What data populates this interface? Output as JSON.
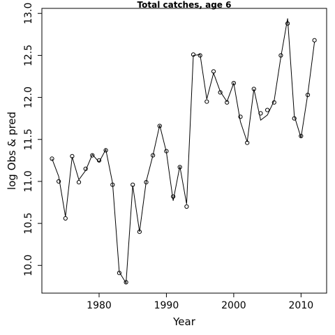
{
  "chart_data": {
    "type": "scatter",
    "title": "Total catches, age 6",
    "xlabel": "Year",
    "ylabel": "log Obs & pred",
    "xlim": [
      1971.5,
      2013.8
    ],
    "ylim": [
      9.67,
      13.06
    ],
    "xticks": [
      1980,
      1990,
      2000,
      2010
    ],
    "yticks": [
      10.0,
      10.5,
      11.0,
      11.5,
      12.0,
      12.5,
      13.0
    ],
    "grid": false,
    "legend": "none",
    "series": [
      {
        "kind": "observed",
        "style": "open-circles",
        "x": [
          1973,
          1974,
          1975,
          1976,
          1977,
          1978,
          1979,
          1980,
          1981,
          1982,
          1983,
          1984,
          1985,
          1986,
          1987,
          1988,
          1989,
          1990,
          1991,
          1992,
          1993,
          1994,
          1995,
          1996,
          1997,
          1998,
          1999,
          2000,
          2001,
          2002,
          2003,
          2004,
          2005,
          2006,
          2007,
          2008,
          2009,
          2010,
          2011,
          2012
        ],
        "y": [
          11.27,
          11.0,
          10.56,
          11.3,
          10.99,
          11.15,
          11.31,
          11.25,
          11.37,
          10.96,
          9.91,
          9.8,
          10.96,
          10.4,
          10.99,
          11.31,
          11.66,
          11.36,
          10.82,
          11.17,
          10.7,
          12.51,
          12.5,
          11.95,
          12.31,
          12.06,
          11.94,
          12.17,
          11.77,
          11.46,
          12.1,
          11.81,
          11.85,
          11.94,
          12.5,
          12.88,
          11.75,
          11.54,
          12.03,
          12.68
        ]
      },
      {
        "kind": "predicted",
        "style": "line",
        "x": [
          1973,
          1974,
          1975,
          1976,
          1977,
          1978,
          1979,
          1980,
          1981,
          1982,
          1983,
          1984,
          1985,
          1986,
          1987,
          1988,
          1989,
          1990,
          1991,
          1992,
          1993,
          1994,
          1995,
          1996,
          1997,
          1998,
          1999,
          2000,
          2001,
          2002,
          2003,
          2004,
          2005,
          2006,
          2007,
          2008,
          2009,
          2010,
          2011,
          2012
        ],
        "y": [
          11.27,
          11.06,
          10.58,
          11.29,
          11.02,
          11.13,
          11.32,
          11.23,
          11.38,
          10.98,
          9.92,
          9.79,
          10.95,
          10.4,
          11.0,
          11.31,
          11.67,
          11.35,
          10.77,
          11.18,
          10.73,
          12.5,
          12.51,
          11.98,
          12.29,
          12.07,
          11.95,
          12.17,
          11.71,
          11.47,
          12.1,
          11.73,
          11.79,
          11.96,
          12.48,
          12.94,
          11.78,
          11.52,
          12.04,
          12.66
        ]
      }
    ]
  }
}
